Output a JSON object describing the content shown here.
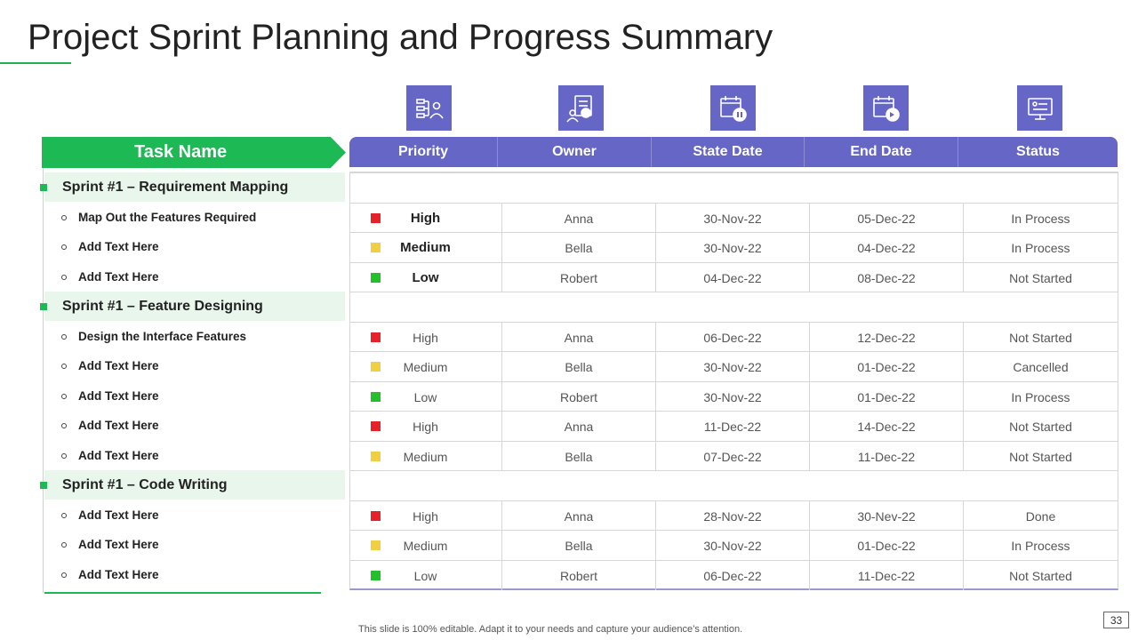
{
  "title": "Project Sprint Planning and Progress Summary",
  "colors": {
    "accent_green": "#1db954",
    "accent_purple": "#6666c6",
    "high": "#e8202a",
    "medium": "#f0d040",
    "low": "#22c02a"
  },
  "icons": [
    "people-chart-icon",
    "checklist-person-icon",
    "calendar-pause-icon",
    "calendar-forward-icon",
    "monitor-status-icon"
  ],
  "left_header": "Task Name",
  "table_headers": [
    "Priority",
    "Owner",
    "State Date",
    "End Date",
    "Status"
  ],
  "rows": [
    {
      "type": "sprint",
      "label": "Sprint #1 – Requirement Mapping"
    },
    {
      "type": "item",
      "label": "Map Out the Features Required",
      "priority": "High",
      "level": "high",
      "bold": true,
      "owner": "Anna",
      "start": "30-Nov-22",
      "end": "05-Dec-22",
      "status": "In Process"
    },
    {
      "type": "item",
      "label": "Add Text Here",
      "priority": "Medium",
      "level": "medium",
      "bold": true,
      "owner": "Bella",
      "start": "30-Nov-22",
      "end": "04-Dec-22",
      "status": "In Process"
    },
    {
      "type": "item",
      "label": "Add Text Here",
      "priority": "Low",
      "level": "low",
      "bold": true,
      "owner": "Robert",
      "start": "04-Dec-22",
      "end": "08-Dec-22",
      "status": "Not Started"
    },
    {
      "type": "sprint",
      "label": "Sprint #1 – Feature Designing"
    },
    {
      "type": "item",
      "label": "Design the Interface Features",
      "priority": "High",
      "level": "high",
      "bold": false,
      "owner": "Anna",
      "start": "06-Dec-22",
      "end": "12-Dec-22",
      "status": "Not Started"
    },
    {
      "type": "item",
      "label": "Add Text Here",
      "priority": "Medium",
      "level": "medium",
      "bold": false,
      "owner": "Bella",
      "start": "30-Nov-22",
      "end": "01-Dec-22",
      "status": "Cancelled"
    },
    {
      "type": "item",
      "label": "Add Text Here",
      "priority": "Low",
      "level": "low",
      "bold": false,
      "owner": "Robert",
      "start": "30-Nov-22",
      "end": "01-Dec-22",
      "status": "In Process"
    },
    {
      "type": "item",
      "label": "Add Text Here",
      "priority": "High",
      "level": "high",
      "bold": false,
      "owner": "Anna",
      "start": "11-Dec-22",
      "end": "14-Dec-22",
      "status": "Not Started"
    },
    {
      "type": "item",
      "label": "Add Text Here",
      "priority": "Medium",
      "level": "medium",
      "bold": false,
      "owner": "Bella",
      "start": "07-Dec-22",
      "end": "11-Dec-22",
      "status": "Not Started"
    },
    {
      "type": "sprint",
      "label": "Sprint #1 – Code Writing"
    },
    {
      "type": "item",
      "label": "Add Text Here",
      "priority": "High",
      "level": "high",
      "bold": false,
      "owner": "Anna",
      "start": "28-Nov-22",
      "end": "30-Nev-22",
      "status": "Done"
    },
    {
      "type": "item",
      "label": "Add Text Here",
      "priority": "Medium",
      "level": "medium",
      "bold": false,
      "owner": "Bella",
      "start": "30-Nov-22",
      "end": "01-Dec-22",
      "status": "In Process"
    },
    {
      "type": "item",
      "label": "Add Text Here",
      "priority": "Low",
      "level": "low",
      "bold": false,
      "owner": "Robert",
      "start": "06-Dec-22",
      "end": "11-Dec-22",
      "status": "Not Started"
    }
  ],
  "footer": "This slide is 100% editable. Adapt it to your needs and capture your audience’s attention.",
  "page_number": "33"
}
